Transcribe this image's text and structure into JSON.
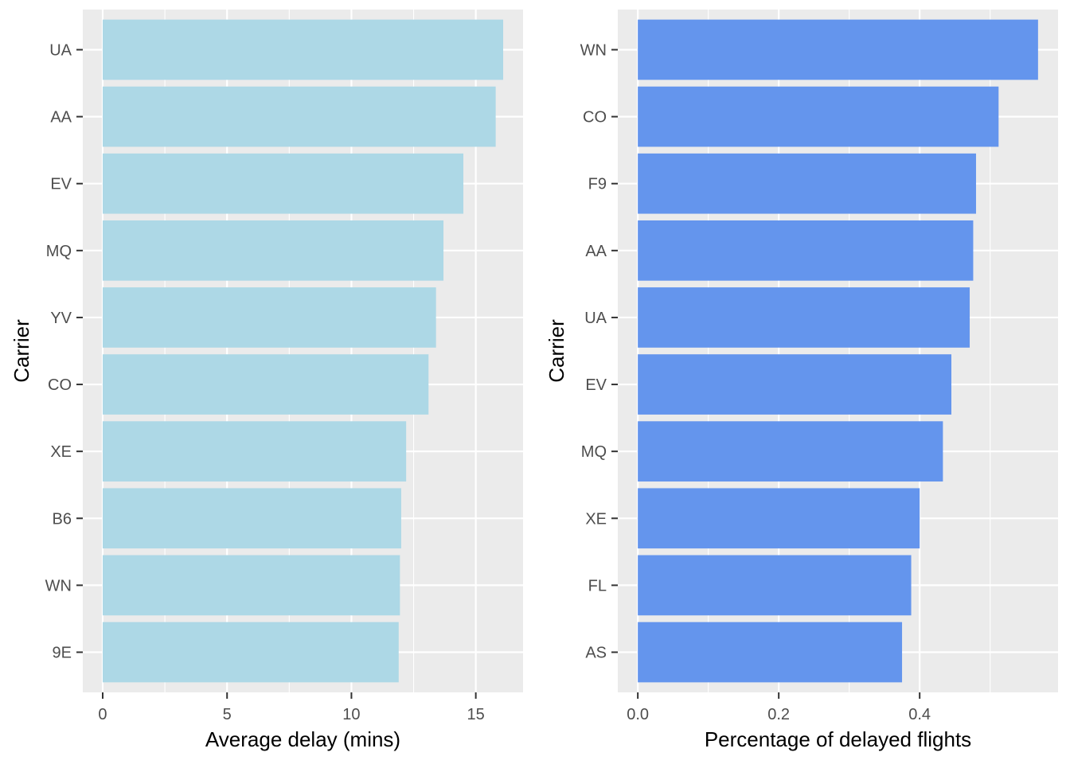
{
  "chart_data": [
    {
      "type": "bar",
      "orientation": "horizontal",
      "categories": [
        "UA",
        "AA",
        "EV",
        "MQ",
        "YV",
        "CO",
        "XE",
        "B6",
        "WN",
        "9E"
      ],
      "values": [
        16.1,
        15.8,
        14.5,
        13.7,
        13.4,
        13.1,
        12.2,
        12.0,
        11.95,
        11.9
      ],
      "xlabel": "Average delay (mins)",
      "ylabel": "Carrier",
      "xticks": [
        0,
        5,
        10,
        15
      ],
      "xtick_labels": [
        "0",
        "5",
        "10",
        "15"
      ],
      "xlim": [
        -0.8,
        16.9
      ],
      "bar_color": "#ADD8E6",
      "panel_bg": "#EBEBEB",
      "grid": true,
      "legend": "none"
    },
    {
      "type": "bar",
      "orientation": "horizontal",
      "categories": [
        "WN",
        "CO",
        "F9",
        "AA",
        "UA",
        "EV",
        "MQ",
        "XE",
        "FL",
        "AS"
      ],
      "values": [
        0.568,
        0.512,
        0.48,
        0.476,
        0.471,
        0.445,
        0.433,
        0.4,
        0.388,
        0.375
      ],
      "xlabel": "Percentage of delayed flights",
      "ylabel": "Carrier",
      "xticks": [
        0.0,
        0.2,
        0.4
      ],
      "xtick_labels": [
        "0.0",
        "0.2",
        "0.4"
      ],
      "xlim": [
        -0.0284,
        0.5964
      ],
      "bar_color": "#6495ED",
      "panel_bg": "#EBEBEB",
      "grid": true,
      "legend": "none"
    }
  ]
}
